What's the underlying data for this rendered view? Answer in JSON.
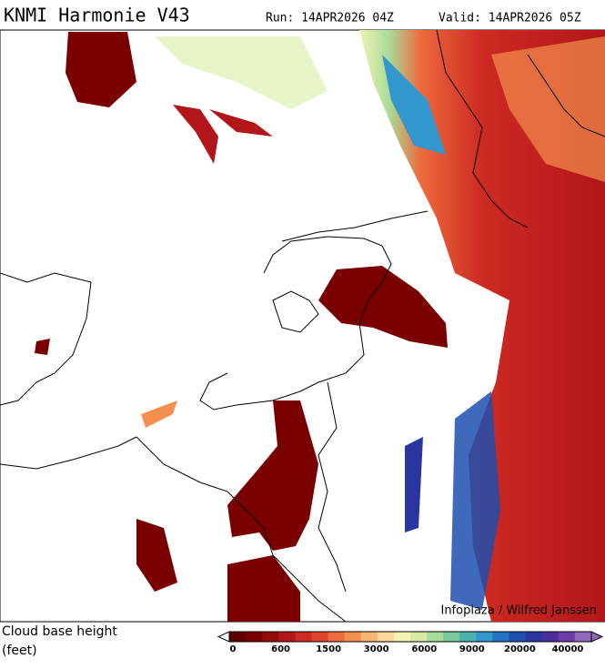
{
  "header": {
    "title": "KNMI Harmonie V43",
    "run": "Run: 14APR2026 04Z",
    "valid": "Valid: 14APR2026 05Z"
  },
  "map": {
    "credit": "Infoplaza / Wilfred Janssen"
  },
  "legend": {
    "title": [
      "Cloud base height",
      "(feet)"
    ],
    "ticks": [
      0,
      600,
      1500,
      3000,
      6000,
      9000,
      20000,
      40000
    ],
    "colors": [
      "#5c0000",
      "#7a0000",
      "#960a0a",
      "#b3161a",
      "#cc2a22",
      "#e0452d",
      "#ee6a3c",
      "#f4904f",
      "#f8b574",
      "#fbd79c",
      "#f3f1b3",
      "#d6eca3",
      "#a9dc9a",
      "#79c99a",
      "#4ab3ad",
      "#3297cc",
      "#2574c4",
      "#1d4fae",
      "#2a36a0",
      "#4b2e9c",
      "#6e3ea8",
      "#9068bb"
    ]
  }
}
